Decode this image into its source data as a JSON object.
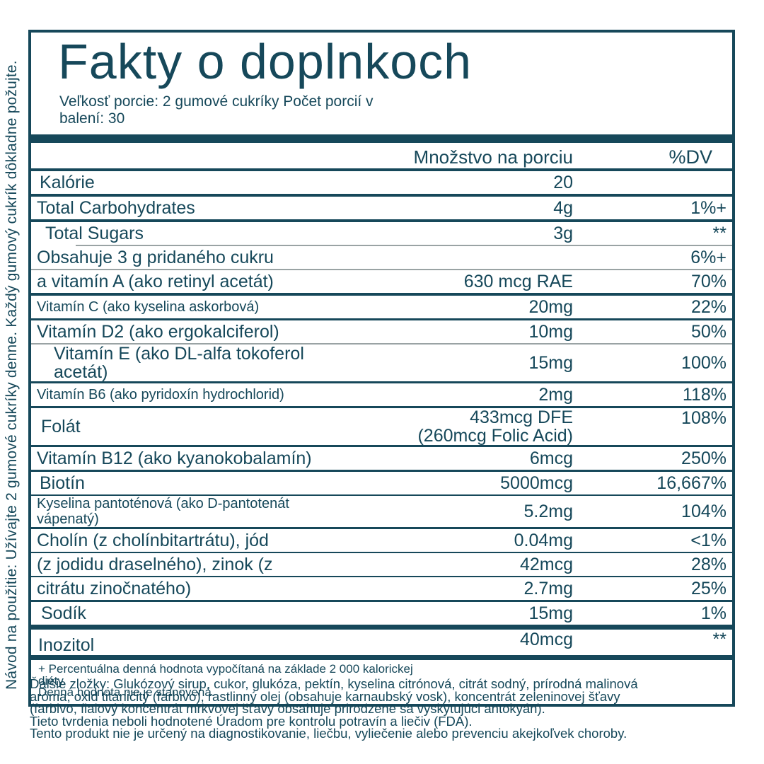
{
  "colors": {
    "ink": "#16485a",
    "muted_line": "#9aa3a4",
    "background": "#ffffff"
  },
  "vertical_note": "Návod na použitie: Užívajte 2 gumové cukríky denne. Každý gumový cukrík dôkladne požujte.",
  "header": {
    "title": "Fakty o doplnkoch",
    "serving_line1": "Veľkosť porcie: 2 gumové cukríky Počet porcií v",
    "serving_line2": "balení: 30"
  },
  "columns": {
    "amount": "Množstvo na porciu",
    "dv": "%DV"
  },
  "table": {
    "rows": [
      {
        "label": "Kalórie",
        "amount": "20",
        "dv": "",
        "indent": 4,
        "sep": "dark4"
      },
      {
        "label": "Total Carbohydrates",
        "amount": "4g",
        "dv": "1%+",
        "indent": 0,
        "sep": "dark4"
      },
      {
        "label": "Total Sugars",
        "amount": "3g",
        "dv": "**",
        "indent": 12,
        "sep": "gray-indent"
      },
      {
        "label": "Obsahuje 3 g pridaného cukru",
        "amount": "",
        "dv": "6%+",
        "indent": 0,
        "sep": "gray"
      },
      {
        "label": "a vitamín A (ako retinyl acetát)",
        "amount": "630 mcg RAE",
        "dv": "70%",
        "indent": 0,
        "sep": "dark4"
      },
      {
        "label": "Vitamín C (ako kyselina askorbová)",
        "amount": "20mg",
        "dv": "22%",
        "small": true,
        "indent": 0,
        "sep": "dark3"
      },
      {
        "label": "Vitamín D2 (ako ergokalciferol)",
        "amount": "10mg",
        "dv": "50%",
        "indent": 0,
        "sep": "gray"
      },
      {
        "label": "Vitamín E (ako DL-alfa tokoferol acetát)",
        "amount": "15mg",
        "dv": "100%",
        "indent": 24,
        "sep": "dark3"
      },
      {
        "label": "Vitamín B6 (ako pyridoxín hydrochlorid)",
        "amount": "2mg",
        "dv": "118%",
        "small": true,
        "indent": 0,
        "sep": "dark3"
      },
      {
        "label": "Folát",
        "amount": "433mcg DFE",
        "amount2": "(260mcg Folic Acid)",
        "dv": "108%",
        "indent": 6,
        "tall": true,
        "dv_top": true,
        "sep": "dark3"
      },
      {
        "label": "Vitamín B12 (ako kyanokobalamín)",
        "amount": "6mcg",
        "dv": "250%",
        "indent": 0,
        "sep": "dark3"
      },
      {
        "label": "Biotín",
        "amount": "5000mcg",
        "dv": "16,667%",
        "indent": 4,
        "sep": "dark2"
      },
      {
        "label": "Kyselina pantoténová (ako D-pantotenát vápenatý)",
        "amount": "5.2mg",
        "dv": "104%",
        "small": true,
        "indent": 0,
        "sep": "dark3"
      },
      {
        "label": "Cholín (z cholínbitartrátu), jód",
        "amount": "0.04mg",
        "dv": "<1%",
        "indent": 0,
        "sep": "dark2"
      },
      {
        "label": "(z jodidu draselného), zinok (z",
        "amount": "42mcg",
        "dv": "28%",
        "indent": 0,
        "sep": "dark2"
      },
      {
        "label": "citrátu zinočnatého)",
        "amount": "2.7mg",
        "dv": "25%",
        "indent": 0,
        "sep": "dark3"
      },
      {
        "label": "Sodík",
        "amount": "15mg",
        "dv": "1%",
        "indent": 6,
        "sep": "bar"
      },
      {
        "label": "Inozitol",
        "amount": "40mcg",
        "dv": "**",
        "indent": 2,
        "stagger": true,
        "sep": "bar"
      }
    ]
  },
  "footnote": {
    "lines": [
      "+ Percentuálna denná hodnota vypočítaná na základe 2 000 kalorickej",
      "diéty.",
      "Denná hodnota nie je stanovená."
    ]
  },
  "bottom_text": {
    "lines": [
      "Ďalšie zložky: Glukózový sirup, cukor, glukóza, pektín, kyselina citrónová, citrát sodný, prírodná malinová",
      "aróma, oxid titaničitý (farbivo), rastlinný olej (obsahuje karnaubský vosk), koncentrát zeleninovej šťavy",
      "(farbivo, fialový koncentrát mrkvovej šťavy obsahuje prirodzene sa vyskytujúci antokyán).",
      "Tieto tvrdenia neboli hodnotené Úradom pre kontrolu potravín a liečiv (FDA).",
      "Tento produkt nie je určený na diagnostikovanie, liečbu, vyliečenie alebo prevenciu akejkoľvek choroby."
    ]
  }
}
